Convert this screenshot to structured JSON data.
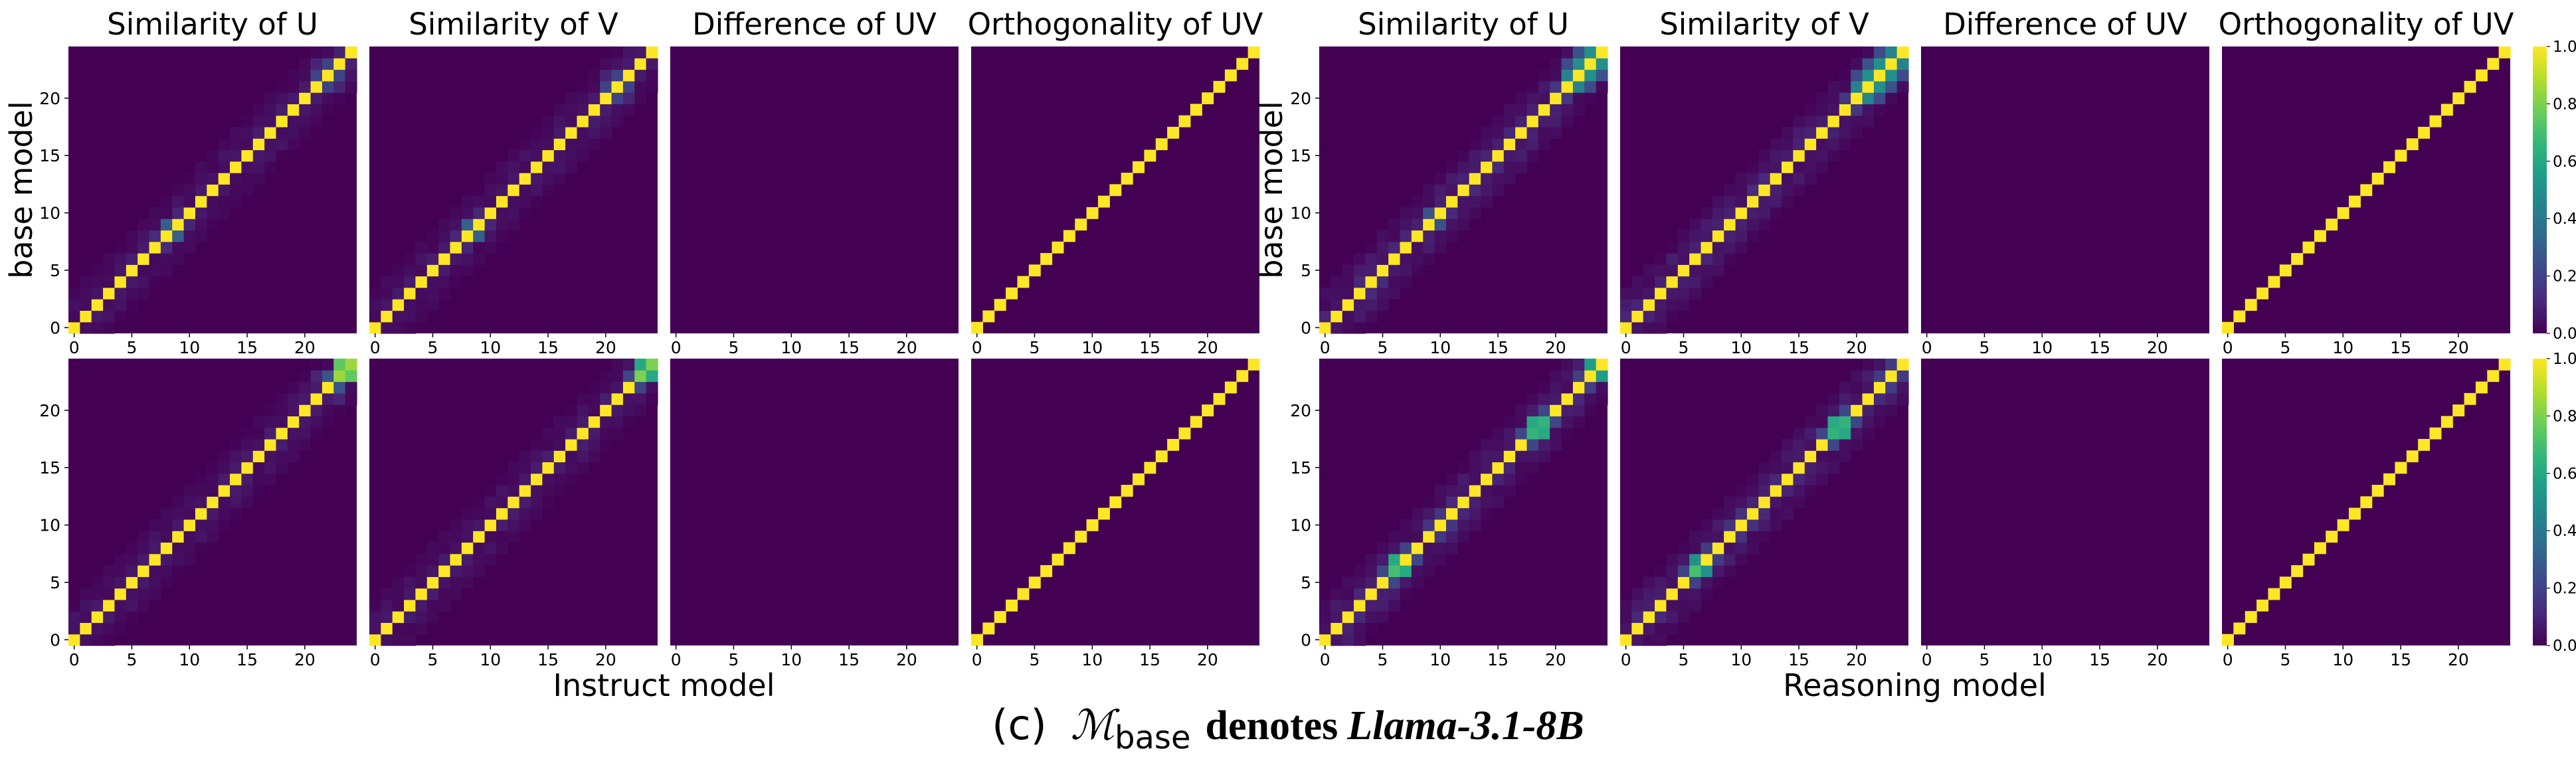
{
  "colors": {
    "background": "#440154",
    "diagonal": "#fde725",
    "colormap": [
      "#440154",
      "#482878",
      "#3e4989",
      "#31688e",
      "#26828e",
      "#1f9e89",
      "#35b779",
      "#6ece58",
      "#b5de2b",
      "#fde725"
    ]
  },
  "groups": [
    {
      "xlabel": "Instruct model",
      "ylabel": "base model",
      "titles": [
        "Similarity of U",
        "Similarity of V",
        "Difference of UV",
        "Orthogonality of UV"
      ]
    },
    {
      "xlabel": "Reasoning model",
      "ylabel": "base model",
      "titles": [
        "Similarity of U",
        "Similarity of V",
        "Difference of UV",
        "Orthogonality of UV"
      ]
    }
  ],
  "colorbar": {
    "ticks": [
      "1.0",
      "0.8",
      "0.6",
      "0.4",
      "0.2",
      "0.0"
    ]
  },
  "caption": {
    "label": "(c)",
    "math_symbol": "ℳ",
    "math_sub": "base",
    "denotes": "denotes",
    "model": "Llama-3.1-8B"
  },
  "chart_data": {
    "type": "heatmap",
    "n_layers": 25,
    "x_ticks": [
      0,
      5,
      10,
      15,
      20
    ],
    "y_ticks": [
      0,
      5,
      10,
      15,
      20
    ],
    "value_range": [
      0,
      1
    ],
    "panels": [
      {
        "id": "instruct-r1-u",
        "kind": "similarity",
        "offdiag": [
          [
            8,
            0.35
          ],
          [
            9,
            0.3
          ],
          [
            21,
            0.2
          ],
          [
            22,
            0.2
          ],
          [
            23,
            0.25
          ]
        ],
        "diag_override": [],
        "noise": 0.07,
        "seed": 11
      },
      {
        "id": "instruct-r1-v",
        "kind": "similarity",
        "offdiag": [
          [
            8,
            0.3
          ],
          [
            9,
            0.3
          ],
          [
            20,
            0.2
          ],
          [
            21,
            0.2
          ],
          [
            22,
            0.2
          ]
        ],
        "diag_override": [],
        "noise": 0.07,
        "seed": 12
      },
      {
        "id": "instruct-r1-diff",
        "kind": "difference",
        "offdiag": [],
        "diag_override": [],
        "noise": 0,
        "seed": 13
      },
      {
        "id": "instruct-r1-orth",
        "kind": "orthogonality",
        "offdiag": [],
        "diag_override": [],
        "noise": 0,
        "seed": 14
      },
      {
        "id": "instruct-r2-u",
        "kind": "similarity",
        "offdiag": [
          [
            23,
            0.75
          ],
          [
            24,
            0.75
          ],
          [
            14,
            0.2
          ],
          [
            21,
            0.2
          ]
        ],
        "diag_override": [
          [
            23,
            0.85
          ],
          [
            24,
            0.85
          ]
        ],
        "noise": 0.07,
        "seed": 21
      },
      {
        "id": "instruct-r2-v",
        "kind": "similarity",
        "offdiag": [
          [
            23,
            0.6
          ],
          [
            24,
            0.6
          ],
          [
            18,
            0.2
          ]
        ],
        "diag_override": [
          [
            23,
            0.8
          ],
          [
            24,
            0.8
          ]
        ],
        "noise": 0.07,
        "seed": 22
      },
      {
        "id": "instruct-r2-diff",
        "kind": "difference",
        "offdiag": [],
        "diag_override": [],
        "noise": 0,
        "seed": 23
      },
      {
        "id": "instruct-r2-orth",
        "kind": "orthogonality",
        "offdiag": [],
        "diag_override": [],
        "noise": 0,
        "seed": 24
      },
      {
        "id": "reasoning-r1-u",
        "kind": "similarity",
        "offdiag": [
          [
            21,
            0.45
          ],
          [
            22,
            0.5
          ],
          [
            23,
            0.55
          ],
          [
            24,
            0.5
          ],
          [
            9,
            0.25
          ],
          [
            10,
            0.25
          ]
        ],
        "diag_override": [],
        "noise": 0.1,
        "seed": 31
      },
      {
        "id": "reasoning-r1-v",
        "kind": "similarity",
        "offdiag": [
          [
            20,
            0.45
          ],
          [
            21,
            0.5
          ],
          [
            22,
            0.5
          ],
          [
            23,
            0.5
          ],
          [
            24,
            0.45
          ],
          [
            9,
            0.25
          ]
        ],
        "diag_override": [],
        "noise": 0.1,
        "seed": 32
      },
      {
        "id": "reasoning-r1-diff",
        "kind": "difference",
        "offdiag": [],
        "diag_override": [],
        "noise": 0,
        "seed": 33
      },
      {
        "id": "reasoning-r1-orth",
        "kind": "orthogonality",
        "offdiag": [],
        "diag_override": [],
        "noise": 0,
        "seed": 34
      },
      {
        "id": "reasoning-r2-u",
        "kind": "similarity",
        "offdiag": [
          [
            6,
            0.6
          ],
          [
            7,
            0.6
          ],
          [
            10,
            0.45
          ],
          [
            18,
            0.6
          ],
          [
            19,
            0.6
          ],
          [
            23,
            0.55
          ],
          [
            24,
            0.55
          ]
        ],
        "diag_override": [
          [
            6,
            0.7
          ],
          [
            18,
            0.65
          ],
          [
            19,
            0.65
          ]
        ],
        "noise": 0.1,
        "seed": 41
      },
      {
        "id": "reasoning-r2-v",
        "kind": "similarity",
        "offdiag": [
          [
            6,
            0.55
          ],
          [
            7,
            0.5
          ],
          [
            10,
            0.4
          ],
          [
            18,
            0.6
          ],
          [
            19,
            0.6
          ],
          [
            23,
            0.5
          ]
        ],
        "diag_override": [
          [
            6,
            0.7
          ],
          [
            18,
            0.65
          ],
          [
            19,
            0.65
          ]
        ],
        "noise": 0.1,
        "seed": 42
      },
      {
        "id": "reasoning-r2-diff",
        "kind": "difference",
        "offdiag": [],
        "diag_override": [],
        "noise": 0,
        "seed": 43
      },
      {
        "id": "reasoning-r2-orth",
        "kind": "orthogonality",
        "offdiag": [],
        "diag_override": [],
        "noise": 0,
        "seed": 44
      }
    ]
  }
}
